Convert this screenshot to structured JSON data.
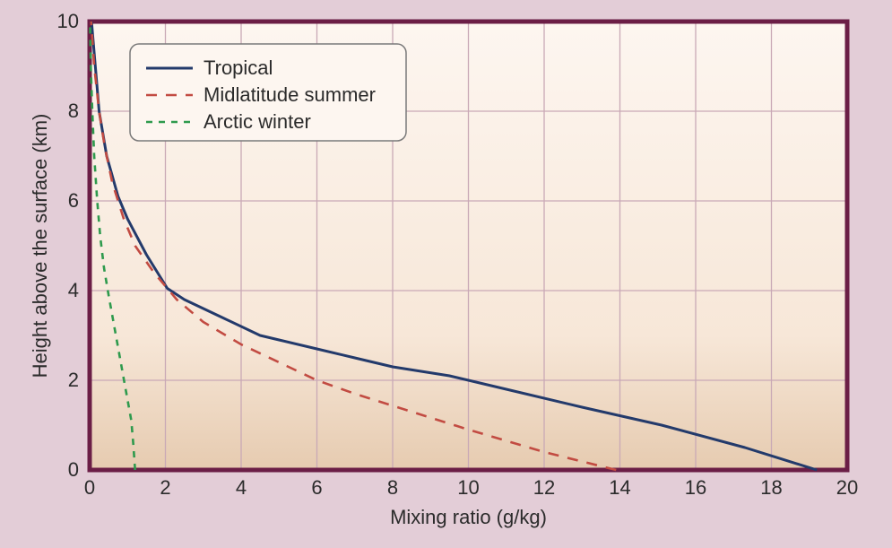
{
  "chart": {
    "type": "line",
    "background_outer": "#e3cdd7",
    "plot_bg_gradient_top": "#fdf6f0",
    "plot_bg_gradient_bottom": "#e6cbb0",
    "plot_border_color": "#6b1e46",
    "plot_border_width": 5,
    "grid_color": "#c9a9b6",
    "grid_width": 1.3,
    "xlabel": "Mixing ratio (g/kg)",
    "ylabel": "Height above the surface (km)",
    "label_fontsize": 22,
    "tick_fontsize": 22,
    "xlim": [
      0,
      20
    ],
    "ylim": [
      0,
      10
    ],
    "xtick_step": 2,
    "ytick_step": 2,
    "xticks": [
      0,
      2,
      4,
      6,
      8,
      10,
      12,
      14,
      16,
      18,
      20
    ],
    "yticks": [
      0,
      2,
      4,
      6,
      8,
      10
    ],
    "legend": {
      "position": "upper-left",
      "box_fill": "#fdf6f0",
      "box_stroke": "#7a7a7a",
      "border_radius": 10,
      "items": [
        {
          "label": "Tropical",
          "color": "#233a6b",
          "dash": "none",
          "width": 3
        },
        {
          "label": "Midlatitude summer",
          "color": "#c24b42",
          "dash": "12,10",
          "width": 2.6
        },
        {
          "label": "Arctic winter",
          "color": "#2e9a4d",
          "dash": "7,7",
          "width": 2.6
        }
      ]
    },
    "series": [
      {
        "name": "Tropical",
        "color": "#233a6b",
        "dash": "none",
        "width": 3,
        "points": [
          [
            19.2,
            0.0
          ],
          [
            17.3,
            0.5
          ],
          [
            15.1,
            1.0
          ],
          [
            13.0,
            1.4
          ],
          [
            11.0,
            1.8
          ],
          [
            9.5,
            2.1
          ],
          [
            8.0,
            2.3
          ],
          [
            7.0,
            2.5
          ],
          [
            6.0,
            2.7
          ],
          [
            5.0,
            2.9
          ],
          [
            4.5,
            3.0
          ],
          [
            3.5,
            3.4
          ],
          [
            2.5,
            3.8
          ],
          [
            2.05,
            4.05
          ],
          [
            1.5,
            4.8
          ],
          [
            1.0,
            5.6
          ],
          [
            0.75,
            6.1
          ],
          [
            0.45,
            7.0
          ],
          [
            0.25,
            8.0
          ],
          [
            0.15,
            9.0
          ],
          [
            0.05,
            10.0
          ]
        ]
      },
      {
        "name": "Midlatitude summer",
        "color": "#c24b42",
        "dash": "12,10",
        "width": 2.6,
        "points": [
          [
            13.9,
            0.0
          ],
          [
            12.0,
            0.4
          ],
          [
            10.0,
            0.9
          ],
          [
            8.5,
            1.3
          ],
          [
            7.0,
            1.7
          ],
          [
            6.0,
            2.0
          ],
          [
            5.0,
            2.4
          ],
          [
            4.0,
            2.8
          ],
          [
            3.0,
            3.3
          ],
          [
            2.3,
            3.8
          ],
          [
            1.7,
            4.4
          ],
          [
            1.2,
            5.0
          ],
          [
            0.9,
            5.6
          ],
          [
            0.6,
            6.4
          ],
          [
            0.4,
            7.2
          ],
          [
            0.25,
            8.0
          ],
          [
            0.12,
            9.0
          ],
          [
            0.04,
            10.0
          ]
        ]
      },
      {
        "name": "Arctic winter",
        "color": "#2e9a4d",
        "dash": "7,7",
        "width": 2.6,
        "points": [
          [
            1.2,
            0.0
          ],
          [
            1.15,
            0.6
          ],
          [
            1.1,
            1.1
          ],
          [
            0.95,
            1.8
          ],
          [
            0.8,
            2.5
          ],
          [
            0.65,
            3.2
          ],
          [
            0.5,
            3.9
          ],
          [
            0.38,
            4.5
          ],
          [
            0.28,
            5.2
          ],
          [
            0.2,
            6.0
          ],
          [
            0.12,
            7.0
          ],
          [
            0.07,
            8.0
          ],
          [
            0.03,
            9.0
          ],
          [
            0.01,
            10.0
          ]
        ]
      }
    ]
  }
}
